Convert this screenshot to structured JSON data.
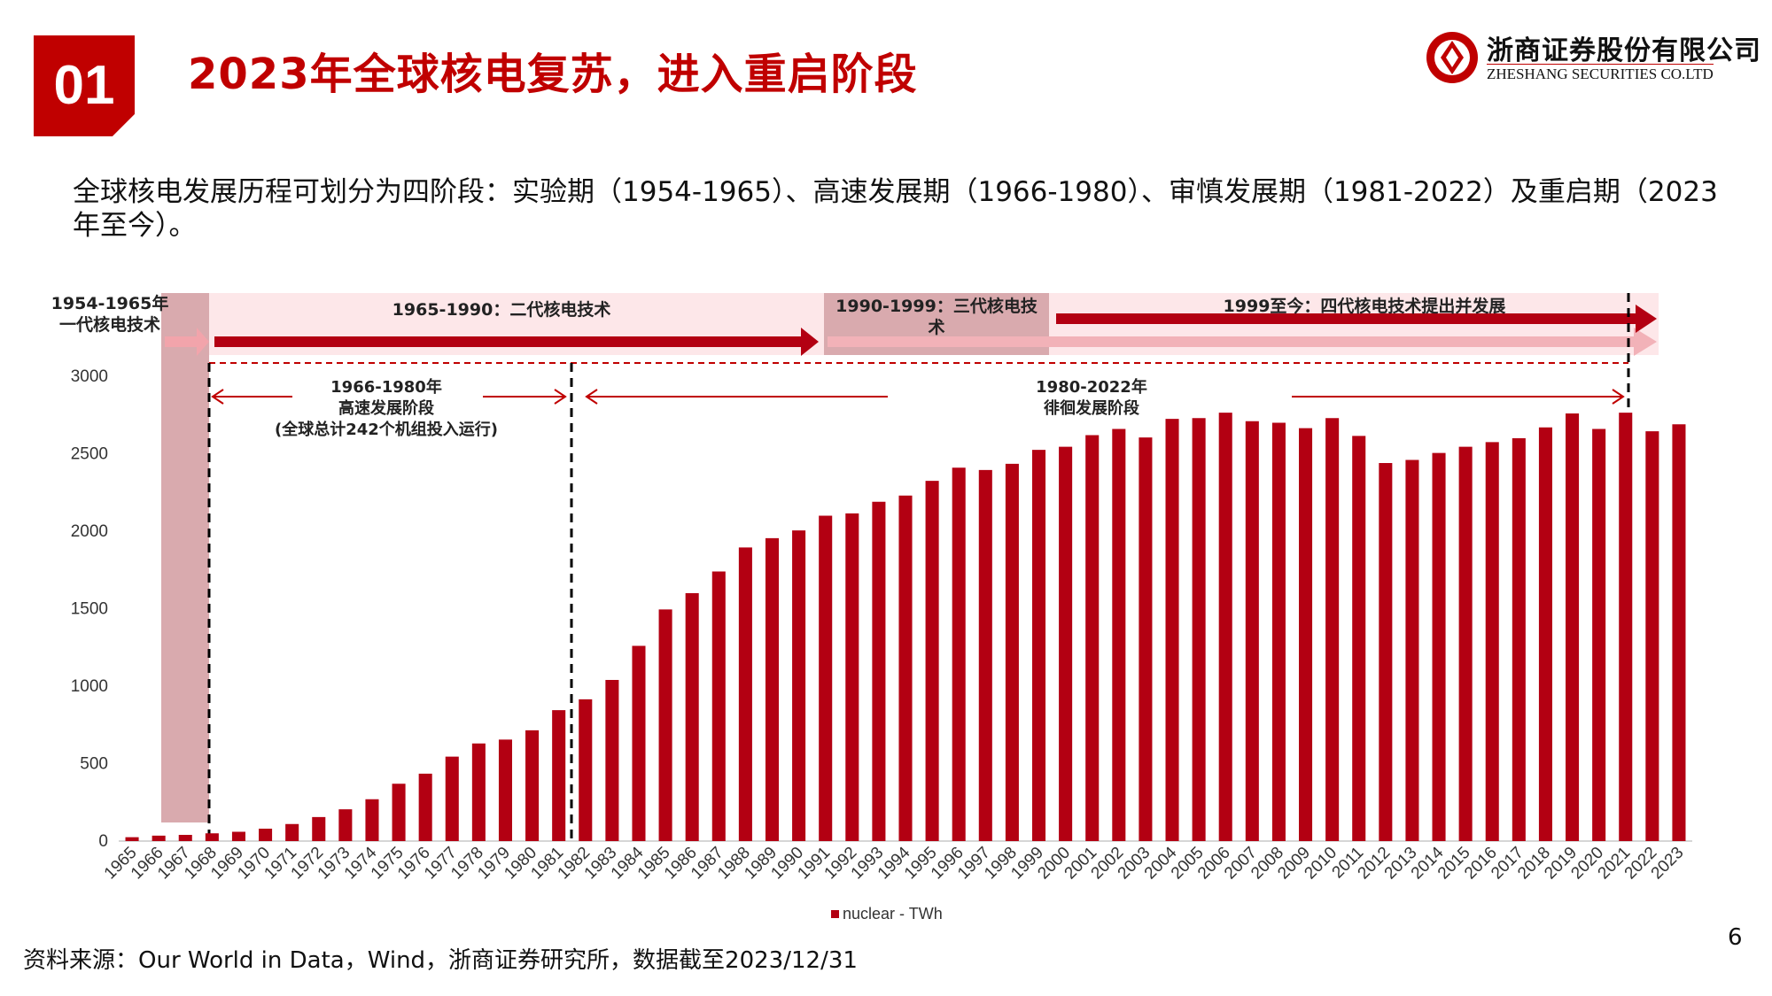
{
  "header": {
    "section_number": "01",
    "title": "2023年全球核电复苏，进入重启阶段",
    "logo_cn": "浙商证券股份有限公司",
    "logo_en": "ZHESHANG SECURITIES CO.LTD"
  },
  "intro_text": "全球核电发展历程可划分为四阶段：实验期（1954-1965）、高速发展期（1966-1980）、审慎发展期（1981-2022）及重启期（2023年至今）。",
  "phases": {
    "gen1": "1954-1965年\n一代核电技术",
    "gen2": "1965-1990：二代核电技术",
    "gen3": "1990-1999：三代核电技\n术",
    "gen4": "1999至今：四代核电技术提出并发展"
  },
  "annotations": {
    "rapid": "1966-1980年\n高速发展阶段\n(全球总计242个机组投入运行)",
    "wander": "1980-2022年\n徘徊发展阶段"
  },
  "chart_data": {
    "type": "bar",
    "categories": [
      "1965",
      "1966",
      "1967",
      "1968",
      "1969",
      "1970",
      "1971",
      "1972",
      "1973",
      "1974",
      "1975",
      "1976",
      "1977",
      "1978",
      "1979",
      "1980",
      "1981",
      "1982",
      "1983",
      "1984",
      "1985",
      "1986",
      "1987",
      "1988",
      "1989",
      "1990",
      "1991",
      "1992",
      "1993",
      "1994",
      "1995",
      "1996",
      "1997",
      "1998",
      "1999",
      "2000",
      "2001",
      "2002",
      "2003",
      "2004",
      "2005",
      "2006",
      "2007",
      "2008",
      "2009",
      "2010",
      "2011",
      "2012",
      "2013",
      "2014",
      "2015",
      "2016",
      "2017",
      "2018",
      "2019",
      "2020",
      "2021",
      "2022",
      "2023"
    ],
    "series": [
      {
        "name": "nuclear - TWh",
        "color": "#b30012",
        "values": [
          25,
          35,
          40,
          50,
          60,
          80,
          110,
          155,
          205,
          270,
          370,
          435,
          545,
          630,
          655,
          715,
          845,
          915,
          1040,
          1260,
          1495,
          1600,
          1740,
          1895,
          1955,
          2005,
          2100,
          2115,
          2190,
          2230,
          2325,
          2410,
          2395,
          2435,
          2525,
          2545,
          2620,
          2660,
          2605,
          2725,
          2730,
          2765,
          2710,
          2700,
          2665,
          2730,
          2615,
          2440,
          2460,
          2505,
          2545,
          2575,
          2600,
          2670,
          2760,
          2660,
          2765,
          2645,
          2690
        ]
      }
    ],
    "ylim": [
      0,
      3000
    ],
    "yticks": [
      0,
      500,
      1000,
      1500,
      2000,
      2500,
      3000
    ],
    "legend": "bottom",
    "legend_label": "nuclear - TWh"
  },
  "footer": {
    "source": "资料来源：Our World in Data，Wind，浙商证券研究所，数据截至2023/12/31",
    "page_number": "6"
  }
}
